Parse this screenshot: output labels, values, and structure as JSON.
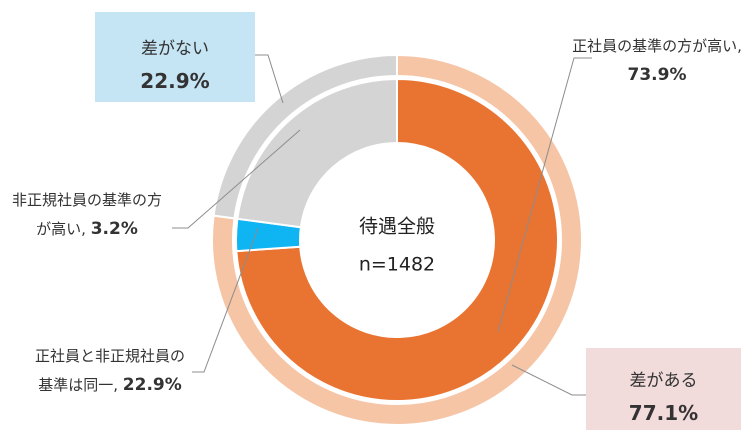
{
  "chart_data": {
    "type": "donut",
    "center_text": [
      "待遇全般",
      "n=1482"
    ],
    "label_separator": ", ",
    "rings": [
      {
        "categories": [
          "差がある",
          "差がない"
        ],
        "values": [
          77.1,
          22.9
        ],
        "value_labels": [
          "77.1%",
          "22.9%"
        ],
        "colors": [
          "#f6c5a6",
          "#d4d4d4"
        ]
      },
      {
        "categories": [
          "正社員の基準の方が高い",
          "非正規社員の基準の方が高い",
          "正社員と非正規社員の基準は同一"
        ],
        "values": [
          73.9,
          3.2,
          22.9
        ],
        "value_labels": [
          "73.9%",
          "3.2%",
          "22.9%"
        ],
        "colors": [
          "#e97432",
          "#0fb4f2",
          "#d4d4d4"
        ]
      }
    ]
  }
}
